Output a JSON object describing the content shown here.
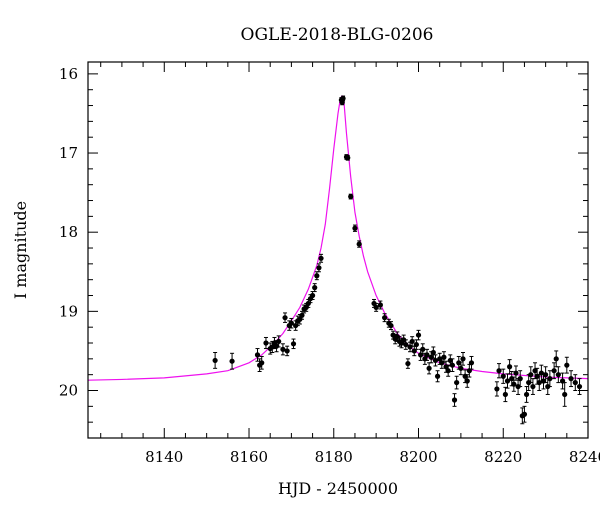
{
  "chart_data": {
    "type": "scatter",
    "title": "OGLE-2018-BLG-0206",
    "xlabel": "HJD - 2450000",
    "ylabel": "I magnitude",
    "xlim": [
      8122,
      8240
    ],
    "ylim": [
      20.6,
      15.85
    ],
    "y_inverted": true,
    "x_ticks": [
      8140,
      8160,
      8180,
      8200,
      8220,
      8240
    ],
    "y_ticks": [
      16,
      17,
      18,
      19,
      20
    ],
    "grid": false,
    "legend": "none",
    "colors": {
      "points": "#000000",
      "model": "#ee11ee"
    },
    "model_curve": {
      "x": [
        8122,
        8130,
        8140,
        8150,
        8155,
        8160,
        8163,
        8166,
        8168,
        8170,
        8172,
        8174,
        8176,
        8177,
        8178,
        8179,
        8180,
        8181,
        8181.6,
        8182,
        8182.4,
        8183,
        8184,
        8185,
        8186,
        8187,
        8188,
        8190,
        8192,
        8195,
        8198,
        8200,
        8205,
        8210,
        8215,
        8220,
        8230,
        8240
      ],
      "y": [
        19.87,
        19.86,
        19.84,
        19.79,
        19.75,
        19.65,
        19.55,
        19.4,
        19.28,
        19.12,
        18.95,
        18.72,
        18.42,
        18.2,
        17.9,
        17.45,
        16.95,
        16.5,
        16.3,
        16.28,
        16.35,
        16.75,
        17.3,
        17.75,
        18.05,
        18.3,
        18.5,
        18.8,
        19.02,
        19.28,
        19.45,
        19.53,
        19.65,
        19.72,
        19.76,
        19.79,
        19.83,
        19.85
      ]
    },
    "points": [
      [
        8152,
        19.62,
        0.1
      ],
      [
        8156,
        19.63,
        0.1
      ],
      [
        8162,
        19.55,
        0.08
      ],
      [
        8162.5,
        19.68,
        0.08
      ],
      [
        8163,
        19.65,
        0.08
      ],
      [
        8164,
        19.4,
        0.07
      ],
      [
        8165,
        19.47,
        0.07
      ],
      [
        8165.5,
        19.45,
        0.07
      ],
      [
        8166,
        19.4,
        0.07
      ],
      [
        8166.5,
        19.44,
        0.07
      ],
      [
        8167,
        19.38,
        0.07
      ],
      [
        8168,
        19.48,
        0.07
      ],
      [
        8168.5,
        19.08,
        0.06
      ],
      [
        8169,
        19.5,
        0.06
      ],
      [
        8169.5,
        19.18,
        0.06
      ],
      [
        8170,
        19.15,
        0.06
      ],
      [
        8170.5,
        19.41,
        0.06
      ],
      [
        8171,
        19.18,
        0.06
      ],
      [
        8171.5,
        19.12,
        0.06
      ],
      [
        8172,
        19.1,
        0.06
      ],
      [
        8172.5,
        19.05,
        0.05
      ],
      [
        8173,
        18.97,
        0.05
      ],
      [
        8173.5,
        18.95,
        0.05
      ],
      [
        8174,
        18.9,
        0.05
      ],
      [
        8174.5,
        18.84,
        0.05
      ],
      [
        8175,
        18.8,
        0.05
      ],
      [
        8175.5,
        18.7,
        0.05
      ],
      [
        8176,
        18.55,
        0.05
      ],
      [
        8176.5,
        18.45,
        0.05
      ],
      [
        8177,
        18.33,
        0.05
      ],
      [
        8181.8,
        16.33,
        0.03
      ],
      [
        8182,
        16.36,
        0.03
      ],
      [
        8182.2,
        16.31,
        0.03
      ],
      [
        8183,
        17.05,
        0.03
      ],
      [
        8183.3,
        17.06,
        0.03
      ],
      [
        8184,
        17.55,
        0.03
      ],
      [
        8185,
        17.95,
        0.04
      ],
      [
        8186,
        18.15,
        0.04
      ],
      [
        8189.5,
        18.9,
        0.05
      ],
      [
        8190,
        18.95,
        0.05
      ],
      [
        8191,
        18.92,
        0.05
      ],
      [
        8192,
        19.08,
        0.05
      ],
      [
        8193,
        19.15,
        0.05
      ],
      [
        8193.5,
        19.18,
        0.05
      ],
      [
        8194,
        19.3,
        0.05
      ],
      [
        8194.5,
        19.35,
        0.06
      ],
      [
        8195,
        19.32,
        0.06
      ],
      [
        8195.5,
        19.38,
        0.06
      ],
      [
        8196,
        19.4,
        0.06
      ],
      [
        8196.5,
        19.36,
        0.06
      ],
      [
        8197,
        19.42,
        0.06
      ],
      [
        8197.5,
        19.66,
        0.06
      ],
      [
        8198,
        19.45,
        0.06
      ],
      [
        8198.5,
        19.38,
        0.06
      ],
      [
        8199,
        19.5,
        0.06
      ],
      [
        8199.5,
        19.42,
        0.06
      ],
      [
        8200,
        19.3,
        0.06
      ],
      [
        8200.5,
        19.55,
        0.07
      ],
      [
        8201,
        19.48,
        0.07
      ],
      [
        8201.5,
        19.6,
        0.07
      ],
      [
        8202,
        19.55,
        0.07
      ],
      [
        8202.5,
        19.72,
        0.07
      ],
      [
        8203,
        19.58,
        0.07
      ],
      [
        8203.5,
        19.52,
        0.07
      ],
      [
        8204,
        19.62,
        0.07
      ],
      [
        8204.5,
        19.82,
        0.07
      ],
      [
        8205,
        19.6,
        0.07
      ],
      [
        8205.5,
        19.65,
        0.07
      ],
      [
        8206,
        19.58,
        0.07
      ],
      [
        8206.5,
        19.7,
        0.07
      ],
      [
        8207,
        19.75,
        0.07
      ],
      [
        8207.5,
        19.62,
        0.07
      ],
      [
        8208,
        19.68,
        0.08
      ],
      [
        8208.5,
        20.12,
        0.08
      ],
      [
        8209,
        19.9,
        0.08
      ],
      [
        8209.5,
        19.65,
        0.08
      ],
      [
        8210,
        19.72,
        0.08
      ],
      [
        8210.5,
        19.6,
        0.08
      ],
      [
        8211,
        19.82,
        0.08
      ],
      [
        8211.5,
        19.88,
        0.08
      ],
      [
        8212,
        19.75,
        0.08
      ],
      [
        8212.5,
        19.65,
        0.08
      ],
      [
        8218.5,
        19.98,
        0.09
      ],
      [
        8219,
        19.75,
        0.09
      ],
      [
        8220,
        19.82,
        0.09
      ],
      [
        8220.5,
        20.05,
        0.09
      ],
      [
        8221,
        19.88,
        0.09
      ],
      [
        8221.5,
        19.7,
        0.09
      ],
      [
        8222,
        19.85,
        0.09
      ],
      [
        8222.5,
        19.92,
        0.09
      ],
      [
        8223,
        19.78,
        0.09
      ],
      [
        8223.5,
        19.95,
        0.1
      ],
      [
        8224,
        19.85,
        0.1
      ],
      [
        8224.5,
        20.32,
        0.1
      ],
      [
        8225,
        20.3,
        0.1
      ],
      [
        8225.5,
        20.05,
        0.1
      ],
      [
        8226,
        19.9,
        0.1
      ],
      [
        8226.5,
        19.8,
        0.1
      ],
      [
        8227,
        19.95,
        0.1
      ],
      [
        8227.5,
        19.75,
        0.1
      ],
      [
        8228,
        19.82,
        0.1
      ],
      [
        8228.5,
        19.9,
        0.1
      ],
      [
        8229,
        19.78,
        0.1
      ],
      [
        8229.5,
        19.88,
        0.1
      ],
      [
        8230,
        19.8,
        0.1
      ],
      [
        8230.5,
        19.95,
        0.1
      ],
      [
        8231,
        19.85,
        0.1
      ],
      [
        8232,
        19.75,
        0.1
      ],
      [
        8232.5,
        19.6,
        0.1
      ],
      [
        8233,
        19.8,
        0.1
      ],
      [
        8234,
        19.88,
        0.1
      ],
      [
        8234.5,
        20.05,
        0.15
      ],
      [
        8235,
        19.68,
        0.1
      ],
      [
        8236,
        19.85,
        0.1
      ],
      [
        8237,
        19.9,
        0.1
      ],
      [
        8238,
        19.95,
        0.1
      ]
    ]
  }
}
